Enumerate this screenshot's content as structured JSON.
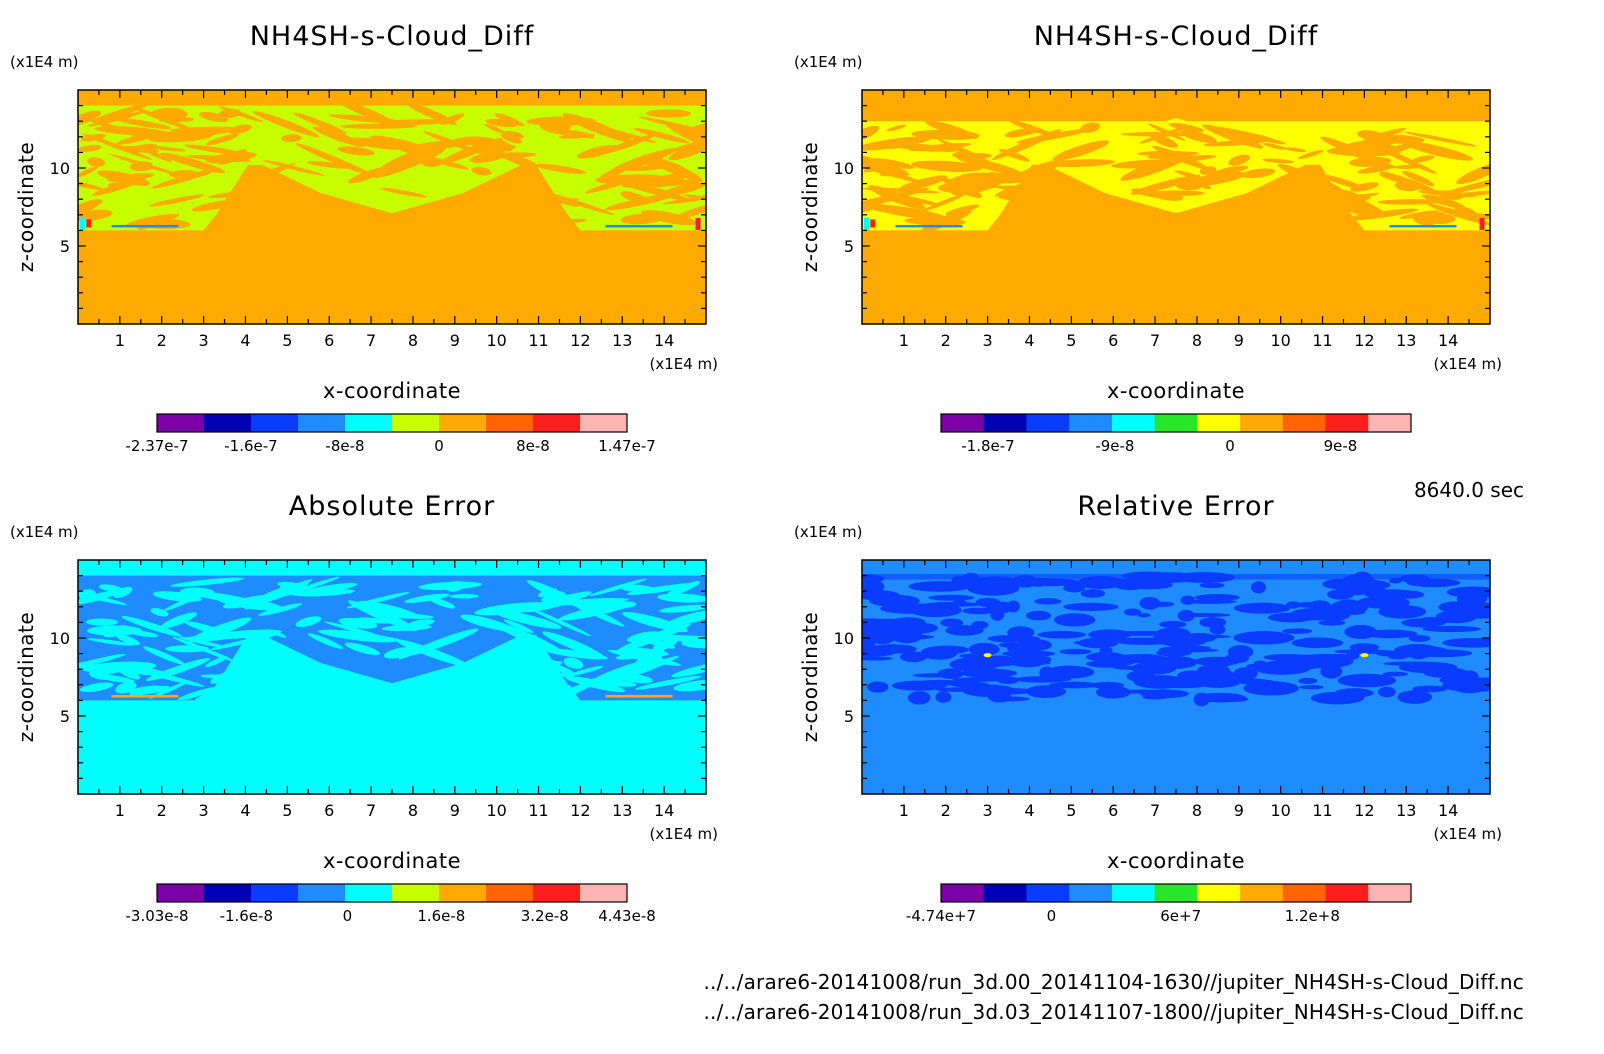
{
  "figure": {
    "time_label": "8640.0 sec",
    "files": [
      "../../arare6-20141008/run_3d.00_20141104-1630//jupiter_NH4SH-s-Cloud_Diff.nc",
      "../../arare6-20141008/run_3d.03_20141107-1800//jupiter_NH4SH-s-Cloud_Diff.nc"
    ]
  },
  "chart_data": [
    {
      "type": "heatmap",
      "title": "NH4SH-s-Cloud_Diff",
      "xlabel": "x-coordinate",
      "ylabel": "z-coordinate",
      "x_unit": "(x1E4 m)",
      "y_unit": "(x1E4 m)",
      "xlim": [
        0,
        15
      ],
      "ylim": [
        0,
        15
      ],
      "x_ticks": [
        "1",
        "2",
        "3",
        "4",
        "5",
        "6",
        "7",
        "8",
        "9",
        "10",
        "11",
        "12",
        "13",
        "14"
      ],
      "y_ticks": [
        "5",
        "10"
      ],
      "colorbar": {
        "colors": [
          "#7b00a8",
          "#0000b4",
          "#0a3cff",
          "#1e8cff",
          "#00ffff",
          "#c8ff00",
          "#ffaa00",
          "#ff6400",
          "#ff1e1e",
          "#ffb4b4"
        ],
        "labels": [
          {
            "text": "-2.37e-7",
            "pos": 0.0
          },
          {
            "text": "-1.6e-7",
            "pos": 0.2
          },
          {
            "text": "-8e-8",
            "pos": 0.4
          },
          {
            "text": "0",
            "pos": 0.6
          },
          {
            "text": "8e-8",
            "pos": 0.8
          },
          {
            "text": "1.47e-7",
            "pos": 1.0
          }
        ]
      },
      "background_color": "#ffaa00",
      "pattern_color": "#c8ff00",
      "pattern": "diff1"
    },
    {
      "type": "heatmap",
      "title": "NH4SH-s-Cloud_Diff",
      "xlabel": "x-coordinate",
      "ylabel": "z-coordinate",
      "x_unit": "(x1E4 m)",
      "y_unit": "(x1E4 m)",
      "xlim": [
        0,
        15
      ],
      "ylim": [
        0,
        15
      ],
      "x_ticks": [
        "1",
        "2",
        "3",
        "4",
        "5",
        "6",
        "7",
        "8",
        "9",
        "10",
        "11",
        "12",
        "13",
        "14"
      ],
      "y_ticks": [
        "5",
        "10"
      ],
      "colorbar": {
        "colors": [
          "#7b00a8",
          "#0000b4",
          "#0a3cff",
          "#1e8cff",
          "#00ffff",
          "#28e628",
          "#ffff00",
          "#ffaa00",
          "#ff6400",
          "#ff1e1e",
          "#ffb4b4"
        ],
        "labels": [
          {
            "text": "-1.8e-7",
            "pos": 0.1
          },
          {
            "text": "-9e-8",
            "pos": 0.37
          },
          {
            "text": "0",
            "pos": 0.615
          },
          {
            "text": "9e-8",
            "pos": 0.85
          }
        ]
      },
      "background_color": "#ffaa00",
      "pattern_color": "#ffff00",
      "pattern": "diff2"
    },
    {
      "type": "heatmap",
      "title": "Absolute Error",
      "xlabel": "x-coordinate",
      "ylabel": "z-coordinate",
      "x_unit": "(x1E4 m)",
      "y_unit": "(x1E4 m)",
      "xlim": [
        0,
        15
      ],
      "ylim": [
        0,
        15
      ],
      "x_ticks": [
        "1",
        "2",
        "3",
        "4",
        "5",
        "6",
        "7",
        "8",
        "9",
        "10",
        "11",
        "12",
        "13",
        "14"
      ],
      "y_ticks": [
        "5",
        "10"
      ],
      "colorbar": {
        "colors": [
          "#7b00a8",
          "#0000b4",
          "#0a3cff",
          "#1e8cff",
          "#00ffff",
          "#c8ff00",
          "#ffaa00",
          "#ff6400",
          "#ff1e1e",
          "#ffb4b4"
        ],
        "labels": [
          {
            "text": "-3.03e-8",
            "pos": 0.0
          },
          {
            "text": "-1.6e-8",
            "pos": 0.19
          },
          {
            "text": "0",
            "pos": 0.405
          },
          {
            "text": "1.6e-8",
            "pos": 0.605
          },
          {
            "text": "3.2e-8",
            "pos": 0.825
          },
          {
            "text": "4.43e-8",
            "pos": 1.0
          }
        ]
      },
      "background_color": "#00ffff",
      "pattern_color": "#1e8cff",
      "pattern": "abs"
    },
    {
      "type": "heatmap",
      "title": "Relative Error",
      "xlabel": "x-coordinate",
      "ylabel": "z-coordinate",
      "x_unit": "(x1E4 m)",
      "y_unit": "(x1E4 m)",
      "xlim": [
        0,
        15
      ],
      "ylim": [
        0,
        15
      ],
      "x_ticks": [
        "1",
        "2",
        "3",
        "4",
        "5",
        "6",
        "7",
        "8",
        "9",
        "10",
        "11",
        "12",
        "13",
        "14"
      ],
      "y_ticks": [
        "5",
        "10"
      ],
      "colorbar": {
        "colors": [
          "#7b00a8",
          "#0000b4",
          "#0a3cff",
          "#1e8cff",
          "#00ffff",
          "#28e628",
          "#ffff00",
          "#ffaa00",
          "#ff6400",
          "#ff1e1e",
          "#ffb4b4"
        ],
        "labels": [
          {
            "text": "-4.74e+7",
            "pos": 0.0
          },
          {
            "text": "0",
            "pos": 0.235
          },
          {
            "text": "6e+7",
            "pos": 0.51
          },
          {
            "text": "1.2e+8",
            "pos": 0.79
          }
        ]
      },
      "background_color": "#1e8cff",
      "pattern_color": "#0a3cff",
      "pattern": "rel"
    }
  ]
}
